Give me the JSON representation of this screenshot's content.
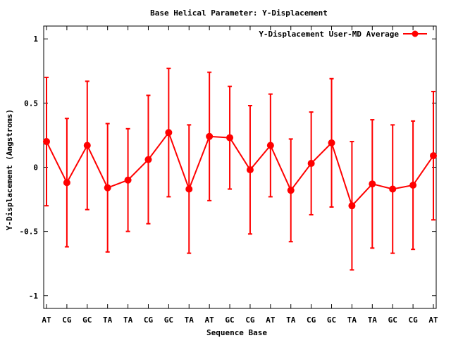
{
  "chart_data": {
    "type": "line",
    "title": "Base  Helical Parameter: Y-Displacement",
    "xlabel": "Sequence Base",
    "ylabel": "Y-Displacement (Angstroms)",
    "ylim": [
      -1.1,
      1.1
    ],
    "yticks": [
      {
        "value": 1,
        "label": "1"
      },
      {
        "value": 0.5,
        "label": "0.5"
      },
      {
        "value": 0,
        "label": "0"
      },
      {
        "value": -0.5,
        "label": "-0.5"
      },
      {
        "value": -1,
        "label": "-1"
      }
    ],
    "categories": [
      "AT",
      "CG",
      "GC",
      "TA",
      "TA",
      "CG",
      "GC",
      "TA",
      "AT",
      "GC",
      "CG",
      "AT",
      "TA",
      "CG",
      "GC",
      "TA",
      "TA",
      "GC",
      "CG",
      "AT"
    ],
    "legend_position": "top-right",
    "grid": false,
    "series": [
      {
        "name": "Y-Displacement User-MD Average",
        "color": "#ff0000",
        "values": [
          0.2,
          -0.12,
          0.17,
          -0.16,
          -0.1,
          0.06,
          0.27,
          -0.17,
          0.24,
          0.23,
          -0.02,
          0.17,
          -0.18,
          0.03,
          0.19,
          -0.3,
          -0.13,
          -0.17,
          -0.14,
          0.09
        ],
        "error": [
          0.5,
          0.5,
          0.5,
          0.5,
          0.4,
          0.5,
          0.5,
          0.5,
          0.5,
          0.4,
          0.5,
          0.4,
          0.4,
          0.4,
          0.5,
          0.5,
          0.5,
          0.5,
          0.5,
          0.5
        ]
      }
    ]
  }
}
